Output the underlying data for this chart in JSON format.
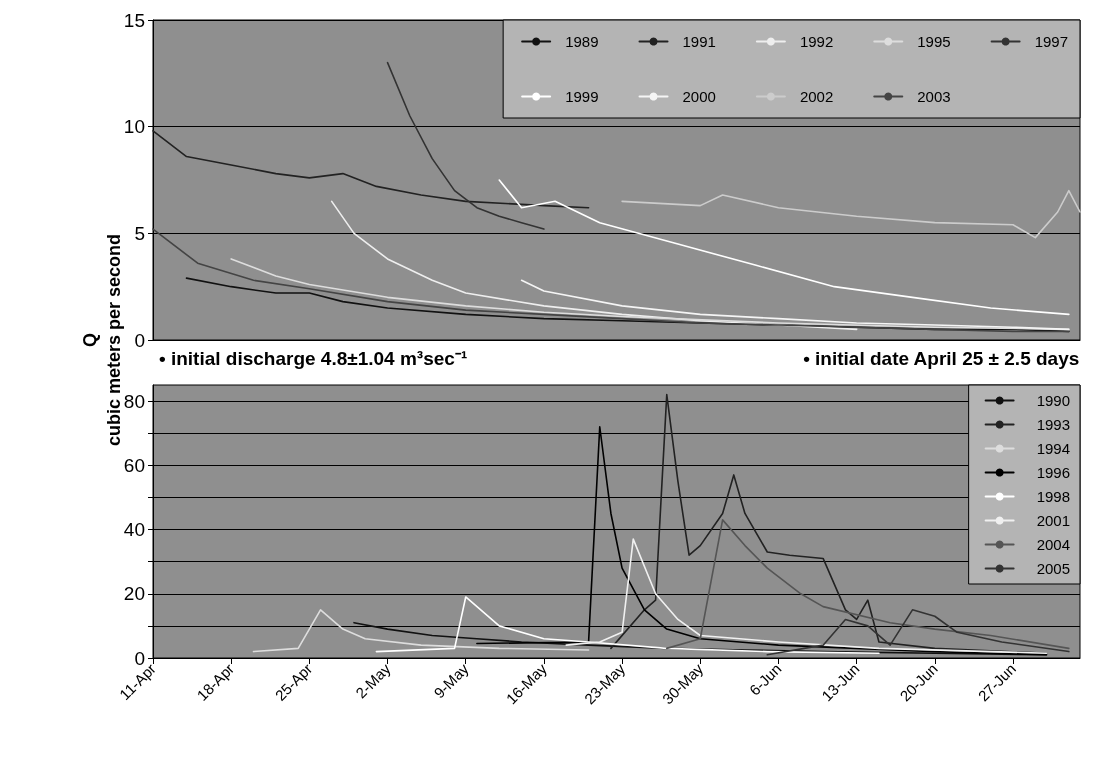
{
  "chart_data": [
    {
      "type": "line",
      "ylabel": "Q\ncubic meters per second",
      "annotations": [
        "• initial discharge 4.8±1.04 m³sec⁻¹",
        "• initial date April 25 ± 2.5 days"
      ],
      "xlim": [
        "--04-11",
        "--07-03"
      ],
      "xticks": [
        {
          "value": "--04-11",
          "label": "11-Apr"
        },
        {
          "value": "--04-18",
          "label": "18-Apr"
        },
        {
          "value": "--04-25",
          "label": "25-Apr"
        },
        {
          "value": "--05-02",
          "label": "2-May"
        },
        {
          "value": "--05-09",
          "label": "9-May"
        },
        {
          "value": "--05-16",
          "label": "16-May"
        },
        {
          "value": "--05-23",
          "label": "23-May"
        },
        {
          "value": "--05-30",
          "label": "30-May"
        },
        {
          "value": "--06-06",
          "label": "6-Jun"
        },
        {
          "value": "--06-13",
          "label": "13-Jun"
        },
        {
          "value": "--06-20",
          "label": "20-Jun"
        },
        {
          "value": "--06-27",
          "label": "27-Jun"
        }
      ],
      "ylim": [
        0,
        15
      ],
      "yticks": [
        0,
        5,
        10,
        15
      ],
      "tick_labels": "y",
      "grid": "y",
      "legend": "top right",
      "marker": "none",
      "line_style": "solid",
      "series": [
        {
          "name": "1989",
          "color": "#111111",
          "x": [
            "--04-14",
            "--04-18",
            "--04-22",
            "--04-25",
            "--04-28",
            "--05-02",
            "--05-09",
            "--05-16",
            "--05-23",
            "--05-30",
            "--06-06",
            "--06-13",
            "--06-20",
            "--06-27",
            "--07-02"
          ],
          "values": [
            2.9,
            2.5,
            2.2,
            2.2,
            1.8,
            1.5,
            1.2,
            1.0,
            0.9,
            0.8,
            0.7,
            0.6,
            0.5,
            0.5,
            0.4
          ]
        },
        {
          "name": "1991",
          "color": "#222222",
          "x": [
            "--04-11",
            "--04-14",
            "--04-18",
            "--04-22",
            "--04-25",
            "--04-28",
            "--05-01",
            "--05-05",
            "--05-09",
            "--05-16",
            "--05-20"
          ],
          "values": [
            9.8,
            8.6,
            8.2,
            7.8,
            7.6,
            7.8,
            7.2,
            6.8,
            6.5,
            6.3,
            6.2
          ]
        },
        {
          "name": "1992",
          "color": "#eeeeee",
          "x": [
            "--04-27",
            "--04-29",
            "--05-02",
            "--05-06",
            "--05-09",
            "--05-16",
            "--05-23",
            "--05-30",
            "--06-06",
            "--06-13"
          ],
          "values": [
            6.5,
            5,
            3.8,
            2.8,
            2.2,
            1.6,
            1.2,
            0.9,
            0.7,
            0.5
          ]
        },
        {
          "name": "1995",
          "color": "#dddddd",
          "x": [
            "--04-18",
            "--04-22",
            "--04-25",
            "--05-02",
            "--05-09",
            "--05-16",
            "--05-23",
            "--06-06",
            "--06-20",
            "--07-02"
          ],
          "values": [
            3.8,
            3,
            2.6,
            2,
            1.6,
            1.3,
            1.1,
            0.8,
            0.6,
            0.5
          ]
        },
        {
          "name": "1997",
          "color": "#333333",
          "x": [
            "--05-02",
            "--05-04",
            "--05-06",
            "--05-08",
            "--05-10",
            "--05-12",
            "--05-14",
            "--05-16"
          ],
          "values": [
            13,
            10.5,
            8.5,
            7,
            6.2,
            5.8,
            5.5,
            5.2
          ]
        },
        {
          "name": "1999",
          "color": "#ffffff",
          "x": [
            "--05-12",
            "--05-14",
            "--05-17",
            "--05-21",
            "--05-28",
            "--06-04",
            "--06-11",
            "--06-18",
            "--06-25",
            "--07-02"
          ],
          "values": [
            7.5,
            6.2,
            6.5,
            5.5,
            4.5,
            3.5,
            2.5,
            2,
            1.5,
            1.2
          ]
        },
        {
          "name": "2000",
          "color": "#f5f5f5",
          "x": [
            "--05-14",
            "--05-16",
            "--05-23",
            "--05-30",
            "--06-06",
            "--06-13",
            "--06-20",
            "--06-27",
            "--07-02"
          ],
          "values": [
            2.8,
            2.3,
            1.6,
            1.2,
            1,
            0.8,
            0.7,
            0.6,
            0.5
          ]
        },
        {
          "name": "2002",
          "color": "#cccccc",
          "x": [
            "--05-23",
            "--05-30",
            "--06-01",
            "--06-06",
            "--06-13",
            "--06-20",
            "--06-27",
            "--06-29",
            "--07-01",
            "--07-02",
            "--07-03"
          ],
          "values": [
            6.5,
            6.3,
            6.8,
            6.2,
            5.8,
            5.5,
            5.4,
            4.8,
            6,
            7,
            6
          ]
        },
        {
          "name": "2003",
          "color": "#444444",
          "x": [
            "--04-11",
            "--04-15",
            "--04-20",
            "--04-25",
            "--05-02",
            "--05-09",
            "--05-16",
            "--05-23",
            "--05-30",
            "--06-06",
            "--06-13",
            "--06-20",
            "--06-27",
            "--07-02"
          ],
          "values": [
            5.2,
            3.6,
            2.8,
            2.4,
            1.8,
            1.4,
            1.2,
            1.0,
            0.8,
            0.7,
            0.6,
            0.5,
            0.4,
            0.4
          ]
        }
      ]
    },
    {
      "type": "line",
      "xlim": [
        "--04-11",
        "--07-03"
      ],
      "xticks": [
        {
          "value": "--04-11",
          "label": "11-Apr"
        },
        {
          "value": "--04-18",
          "label": "18-Apr"
        },
        {
          "value": "--04-25",
          "label": "25-Apr"
        },
        {
          "value": "--05-02",
          "label": "2-May"
        },
        {
          "value": "--05-09",
          "label": "9-May"
        },
        {
          "value": "--05-16",
          "label": "16-May"
        },
        {
          "value": "--05-23",
          "label": "23-May"
        },
        {
          "value": "--05-30",
          "label": "30-May"
        },
        {
          "value": "--06-06",
          "label": "6-Jun"
        },
        {
          "value": "--06-13",
          "label": "13-Jun"
        },
        {
          "value": "--06-20",
          "label": "20-Jun"
        },
        {
          "value": "--06-27",
          "label": "27-Jun"
        }
      ],
      "ylim": [
        0,
        85
      ],
      "yticks": [
        0,
        {
          "value": 10,
          "label": null
        },
        20,
        {
          "value": 30,
          "label": null
        },
        40,
        {
          "value": 50,
          "label": null
        },
        60,
        {
          "value": 70,
          "label": null
        },
        80
      ],
      "grid": "y",
      "legend": "top right",
      "marker": "none",
      "line_style": "solid",
      "series": [
        {
          "name": "1990",
          "color": "#111111",
          "x": [
            "--04-29",
            "--05-02",
            "--05-06",
            "--05-10",
            "--05-14",
            "--05-20",
            "--05-27",
            "--06-03",
            "--06-10",
            "--06-20",
            "--06-30"
          ],
          "values": [
            11,
            9,
            7,
            6,
            5,
            4,
            3,
            2.5,
            2,
            1.5,
            1
          ]
        },
        {
          "name": "1993",
          "color": "#222222",
          "x": [
            "--05-22",
            "--05-25",
            "--05-26",
            "--05-27",
            "--05-28",
            "--05-29",
            "--05-30",
            "--06-01",
            "--06-02",
            "--06-03",
            "--06-05",
            "--06-07",
            "--06-10",
            "--06-12",
            "--06-13",
            "--06-14",
            "--06-15",
            "--06-20",
            "--06-30"
          ],
          "values": [
            3,
            15,
            18,
            82,
            55,
            32,
            35,
            45,
            57,
            45,
            33,
            32,
            31,
            15,
            12,
            18,
            5,
            3,
            1.5
          ]
        },
        {
          "name": "1994",
          "color": "#dddddd",
          "x": [
            "--04-20",
            "--04-24",
            "--04-26",
            "--04-28",
            "--04-30",
            "--05-05",
            "--05-12",
            "--05-20"
          ],
          "values": [
            2,
            3,
            15,
            9,
            6,
            4,
            3,
            2.5
          ]
        },
        {
          "name": "1996",
          "color": "#000000",
          "x": [
            "--05-10",
            "--05-20",
            "--05-21",
            "--05-22",
            "--05-23",
            "--05-25",
            "--05-27",
            "--05-30",
            "--06-06",
            "--06-13",
            "--06-20",
            "--06-30"
          ],
          "values": [
            4.5,
            5,
            72,
            45,
            28,
            15,
            9,
            6,
            4,
            3,
            2,
            1
          ]
        },
        {
          "name": "1998",
          "color": "#ffffff",
          "x": [
            "--05-01",
            "--05-08",
            "--05-09",
            "--05-12",
            "--05-16",
            "--05-20",
            "--05-27",
            "--06-05",
            "--06-15"
          ],
          "values": [
            2,
            3,
            19,
            10,
            6,
            5,
            3,
            2,
            1.5
          ]
        },
        {
          "name": "2001",
          "color": "#f0f0f0",
          "x": [
            "--05-18",
            "--05-21",
            "--05-23",
            "--05-24",
            "--05-26",
            "--05-28",
            "--05-30",
            "--06-06",
            "--06-15",
            "--06-30"
          ],
          "values": [
            4,
            5,
            8,
            37,
            20,
            12,
            7,
            5,
            3,
            1.5
          ]
        },
        {
          "name": "2004",
          "color": "#555555",
          "x": [
            "--05-27",
            "--05-30",
            "--06-01",
            "--06-03",
            "--06-05",
            "--06-08",
            "--06-10",
            "--06-16",
            "--06-20",
            "--06-25",
            "--07-02"
          ],
          "values": [
            3,
            6,
            43,
            35,
            28,
            20,
            16,
            11,
            9,
            7,
            3
          ]
        },
        {
          "name": "2005",
          "color": "#333333",
          "x": [
            "--06-05",
            "--06-10",
            "--06-12",
            "--06-14",
            "--06-16",
            "--06-18",
            "--06-20",
            "--06-22",
            "--06-26",
            "--07-02"
          ],
          "values": [
            1,
            4,
            12,
            10,
            4,
            15,
            13,
            8,
            5,
            2
          ]
        }
      ]
    }
  ]
}
